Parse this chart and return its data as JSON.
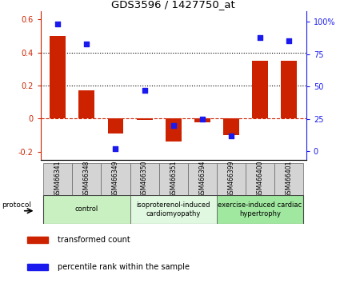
{
  "title": "GDS3596 / 1427750_at",
  "samples": [
    "GSM466341",
    "GSM466348",
    "GSM466349",
    "GSM466350",
    "GSM466351",
    "GSM466394",
    "GSM466399",
    "GSM466400",
    "GSM466401"
  ],
  "transformed_count": [
    0.5,
    0.17,
    -0.09,
    -0.01,
    -0.14,
    -0.02,
    -0.1,
    0.35,
    0.35
  ],
  "percentile_rank": [
    98,
    83,
    2,
    47,
    20,
    25,
    12,
    88,
    85
  ],
  "groups": [
    {
      "label": "control",
      "indices": [
        0,
        1,
        2
      ],
      "color": "#c8f0c0"
    },
    {
      "label": "isoproterenol-induced\ncardiomyopathy",
      "indices": [
        3,
        4,
        5
      ],
      "color": "#dff8df"
    },
    {
      "label": "exercise-induced cardiac\nhypertrophy",
      "indices": [
        6,
        7,
        8
      ],
      "color": "#a0e8a0"
    }
  ],
  "bar_color": "#cc2200",
  "dot_color": "#1a1aee",
  "ylim_left": [
    -0.25,
    0.65
  ],
  "ylim_right": [
    -6.5,
    108
  ],
  "yticks_left": [
    -0.2,
    0.0,
    0.2,
    0.4,
    0.6
  ],
  "yticks_right": [
    0,
    25,
    50,
    75,
    100
  ],
  "ytick_labels_left": [
    "-0.2",
    "0",
    "0.2",
    "0.4",
    "0.6"
  ],
  "ytick_labels_right": [
    "0",
    "25",
    "50",
    "75",
    "100%"
  ],
  "hlines": [
    0.4,
    0.2
  ],
  "protocol_label": "protocol",
  "legend_items": [
    {
      "label": "transformed count",
      "color": "#cc2200"
    },
    {
      "label": "percentile rank within the sample",
      "color": "#1a1aee"
    }
  ]
}
